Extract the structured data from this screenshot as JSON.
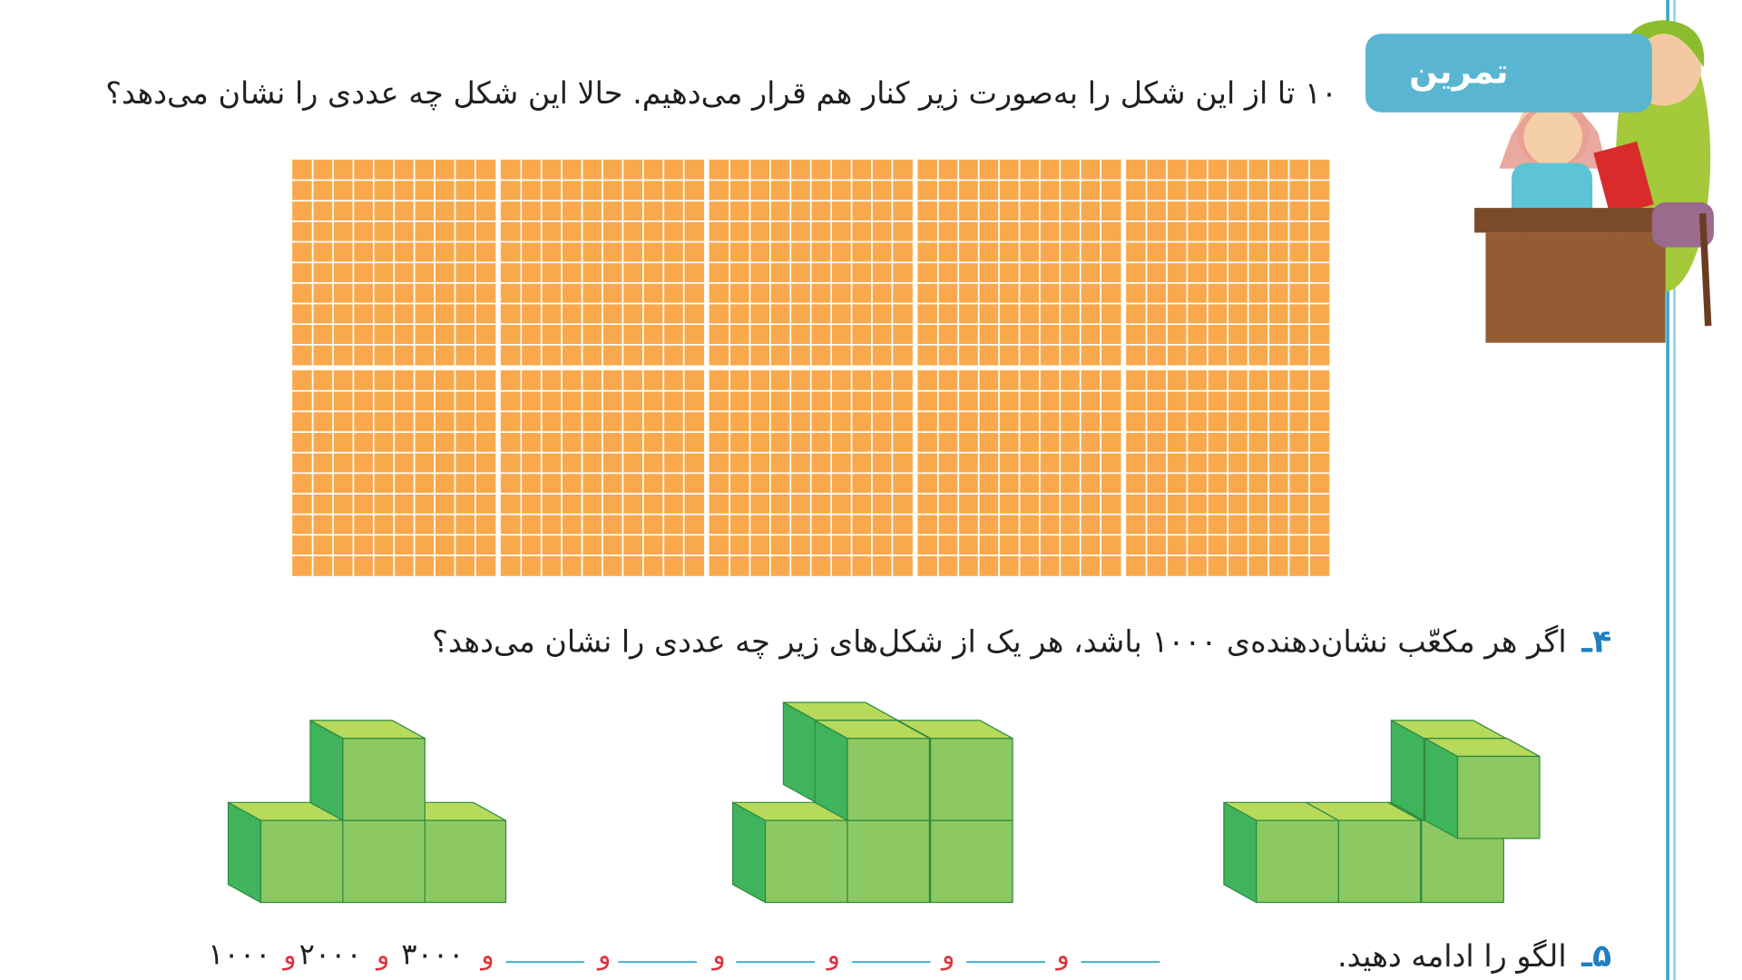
{
  "badge": "تمرین",
  "exercise3": {
    "text": "۱۰ تا از این شکل را به‌صورت زیر کنار هم قرار می‌دهیم. حالا این شکل چه عددی را نشان می‌دهد؟"
  },
  "exercise4": {
    "number": "۴ـ",
    "text": "اگر هر مکعّب نشان‌دهنده‌ی ۱۰۰۰ باشد، هر یک از شکل‌های زیر چه عددی را نشان می‌دهد؟"
  },
  "exercise5": {
    "number": "۵ـ",
    "text": "الگو را ادامه دهید.",
    "pattern": {
      "terms": [
        "۱۰۰۰",
        "۲۰۰۰",
        "۳۰۰۰"
      ],
      "separator": "و"
    }
  }
}
